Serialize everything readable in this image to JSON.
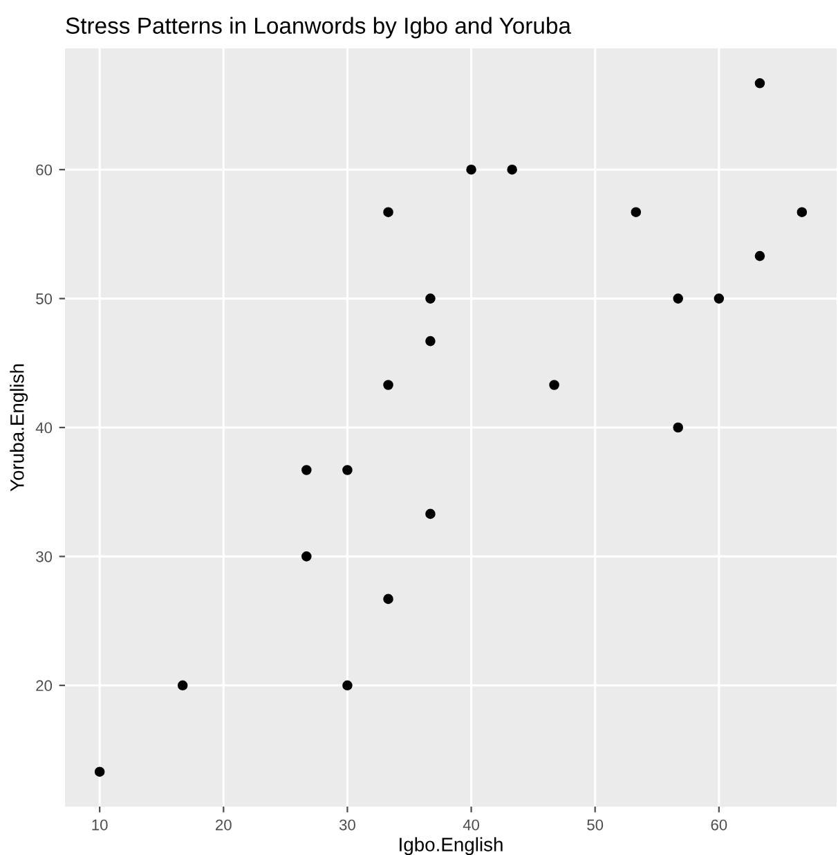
{
  "chart_data": {
    "type": "scatter",
    "title": "Stress Patterns in Loanwords by Igbo and Yoruba",
    "xlabel": "Igbo.English",
    "ylabel": "Yoruba.English",
    "series": [
      {
        "color": "#000000",
        "x": [
          10,
          16.7,
          30,
          26.7,
          26.7,
          30,
          33.3,
          36.7,
          33.3,
          36.7,
          36.7,
          33.3,
          40,
          43.3,
          46.7,
          53.3,
          56.7,
          56.7,
          60,
          63.3,
          63.3,
          66.7
        ],
        "values": [
          13.3,
          20,
          20,
          30,
          36.7,
          36.7,
          26.7,
          33.3,
          43.3,
          46.7,
          50,
          56.7,
          60,
          60,
          43.3,
          56.7,
          50,
          40,
          50,
          53.3,
          66.7,
          56.7
        ]
      }
    ],
    "xlim": [
      7.2,
      69.5
    ],
    "ylim": [
      10.6,
      69.4
    ],
    "xticks": [
      10,
      20,
      30,
      40,
      50,
      60
    ],
    "yticks": [
      20,
      30,
      40,
      50,
      60
    ],
    "grid": true
  }
}
